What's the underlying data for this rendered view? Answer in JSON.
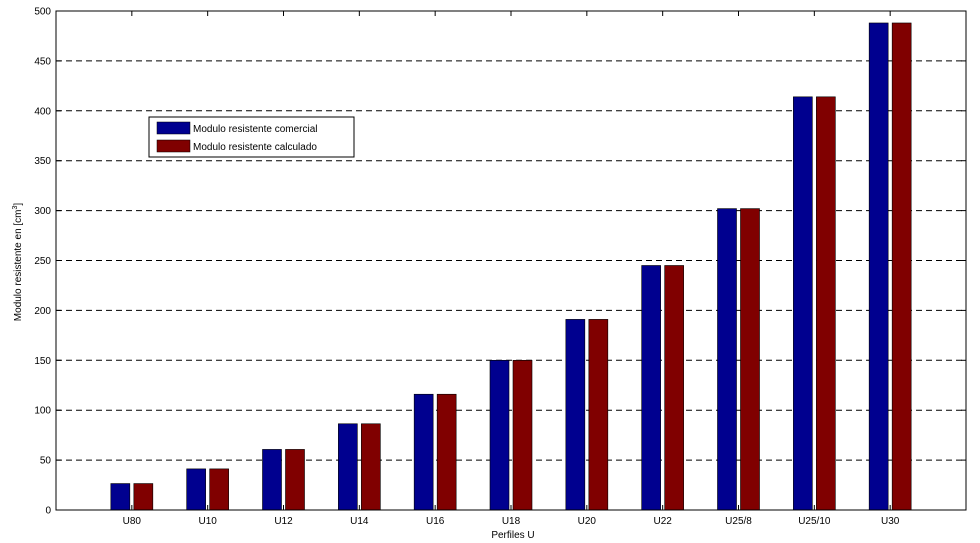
{
  "chart_data": {
    "type": "bar",
    "title": "",
    "xlabel": "Perfiles U",
    "ylabel": "Modulo resistente en [cm",
    "ylabel_superscript": "3",
    "ylabel_suffix": "]",
    "categories": [
      "U80",
      "U10",
      "U12",
      "U14",
      "U16",
      "U18",
      "U20",
      "U22",
      "U25/8",
      "U25/10",
      "U30"
    ],
    "series": [
      {
        "name": "Modulo resistente comercial",
        "color": "#00008f",
        "values": [
          26.5,
          41.2,
          60.7,
          86.4,
          116,
          150,
          191,
          245,
          302,
          414,
          488
        ]
      },
      {
        "name": "Modulo resistente calculado",
        "color": "#800000",
        "values": [
          26.5,
          41.2,
          60.7,
          86.4,
          116,
          150,
          191,
          245,
          302,
          414,
          488
        ]
      }
    ],
    "ylim": [
      0,
      500
    ],
    "yticks": [
      0,
      50,
      100,
      150,
      200,
      250,
      300,
      350,
      400,
      450,
      500
    ],
    "grid": "y-dashed",
    "legend_position": "top-left"
  }
}
